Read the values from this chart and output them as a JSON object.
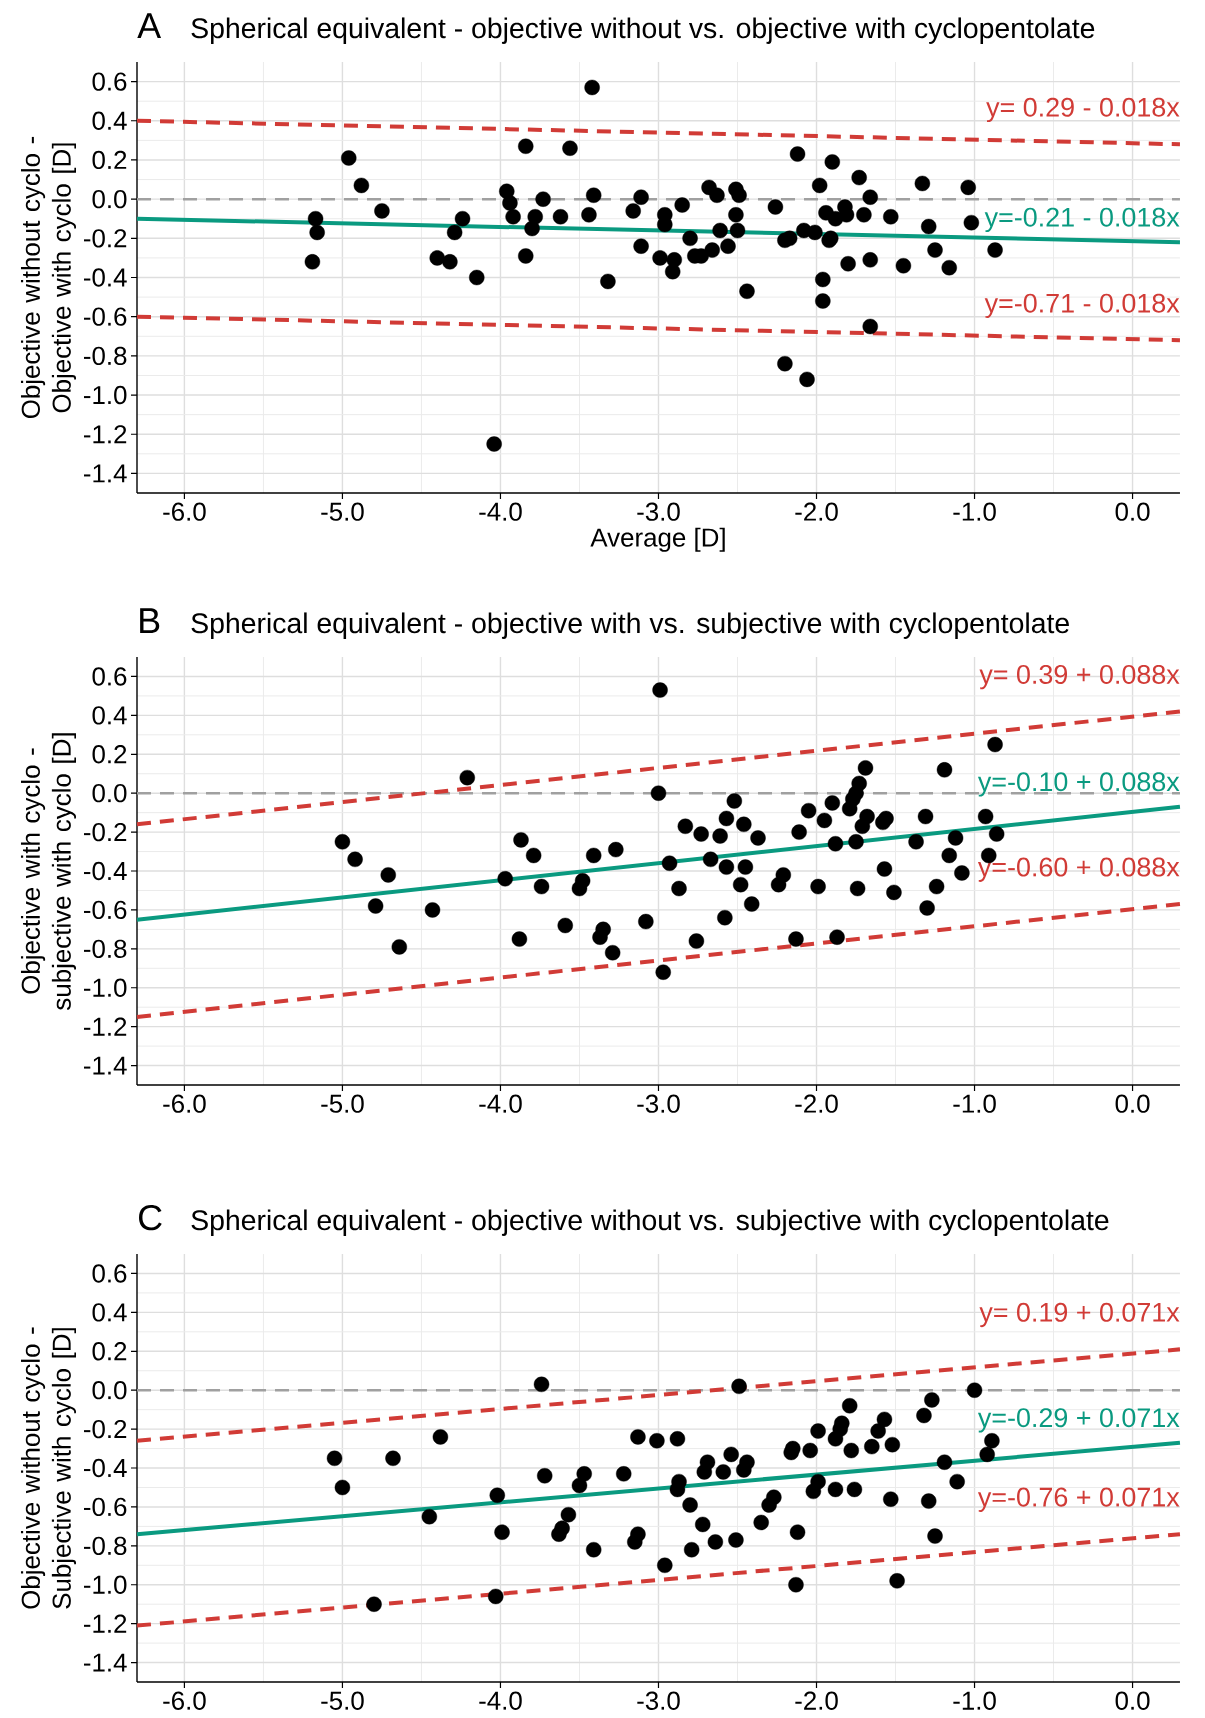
{
  "chart_data": [
    {
      "type": "scatter",
      "title": "Spherical equivalent - objective without vs. objective with cyclopentolate",
      "xlabel": "Average [D]",
      "ylabel": "Objective without cyclo - Objective with cyclo [D]",
      "annotations": [
        "A",
        "y= 0.29 - 0.018x",
        "y=-0.21 - 0.018x",
        "y=-0.71 - 0.018x"
      ],
      "xlim": [
        -6.3,
        0.3
      ],
      "ylim": [
        -1.5,
        0.7
      ],
      "xticks": [
        {
          "value": -6,
          "label": "-6.0"
        },
        {
          "value": -5,
          "label": "-5.0"
        },
        {
          "value": -4,
          "label": "-4.0"
        },
        {
          "value": -3,
          "label": "-3.0"
        },
        {
          "value": -2,
          "label": "-2.0"
        },
        {
          "value": -1,
          "label": "-1.0"
        },
        {
          "value": 0,
          "label": "0.0"
        }
      ],
      "yticks": [
        {
          "value": -1.4,
          "label": "-1.4"
        },
        {
          "value": -1.2,
          "label": "-1.2"
        },
        {
          "value": -1.0,
          "label": "-1.0"
        },
        {
          "value": -0.8,
          "label": "-0.8"
        },
        {
          "value": -0.6,
          "label": "-0.6"
        },
        {
          "value": -0.4,
          "label": "-0.4"
        },
        {
          "value": -0.2,
          "label": "-0.2"
        },
        {
          "value": 0,
          "label": "0.0"
        },
        {
          "value": 0.2,
          "label": "0.2"
        },
        {
          "value": 0.4,
          "label": "0.4"
        },
        {
          "value": 0.6,
          "label": "0.6"
        }
      ],
      "grid": true,
      "marker": "circle",
      "ref_lines": [
        {
          "axis": "y",
          "value": 0,
          "color": "#a0a0a0",
          "line_style": "dashed"
        }
      ],
      "series": [
        {
          "type": "line",
          "marker": "none",
          "color": "#d13b36",
          "line_style": "dashed",
          "x": [
            -6.3,
            0.3
          ],
          "values": [
            0.4,
            0.28
          ]
        },
        {
          "type": "line",
          "marker": "none",
          "color": "#0a9a80",
          "line_style": "solid",
          "x": [
            -6.3,
            0.3
          ],
          "values": [
            -0.1,
            -0.22
          ]
        },
        {
          "type": "line",
          "marker": "none",
          "color": "#d13b36",
          "line_style": "dashed",
          "x": [
            -6.3,
            0.3
          ],
          "values": [
            -0.6,
            -0.72
          ]
        },
        {
          "color": "#000000",
          "x": [
            -5.19,
            -5.17,
            -5.16,
            -4.96,
            -4.88,
            -4.75,
            -4.4,
            -4.32,
            -4.29,
            -4.24,
            -4.15,
            -4.04,
            -3.96,
            -3.94,
            -3.92,
            -3.84,
            -3.84,
            -3.8,
            -3.78,
            -3.73,
            -3.62,
            -3.56,
            -3.44,
            -3.42,
            -3.41,
            -3.32,
            -3.16,
            -3.11,
            -3.11,
            -2.99,
            -2.96,
            -2.96,
            -2.91,
            -2.9,
            -2.85,
            -2.8,
            -2.77,
            -2.73,
            -2.68,
            -2.66,
            -2.63,
            -2.61,
            -2.56,
            -2.51,
            -2.49,
            -2.51,
            -2.5,
            -2.44,
            -2.26,
            -2.2,
            -2.17,
            -2.2,
            -2.12,
            -2.08,
            -2.06,
            -2.01,
            -1.98,
            -1.96,
            -1.96,
            -1.94,
            -1.92,
            -1.91,
            -1.9,
            -1.88,
            -1.82,
            -1.81,
            -1.8,
            -1.73,
            -1.7,
            -1.66,
            -1.66,
            -1.66,
            -1.53,
            -1.45,
            -1.33,
            -1.29,
            -1.25,
            -1.16,
            -1.04,
            -1.02,
            -0.87
          ],
          "values": [
            -0.32,
            -0.1,
            -0.17,
            0.21,
            0.07,
            -0.06,
            -0.3,
            -0.32,
            -0.17,
            -0.1,
            -0.4,
            -1.25,
            0.04,
            -0.02,
            -0.09,
            0.27,
            -0.29,
            -0.15,
            -0.09,
            0.0,
            -0.09,
            0.26,
            -0.08,
            0.57,
            0.02,
            -0.42,
            -0.06,
            -0.24,
            0.01,
            -0.3,
            -0.08,
            -0.13,
            -0.37,
            -0.31,
            -0.03,
            -0.2,
            -0.29,
            -0.29,
            0.06,
            -0.26,
            0.02,
            -0.16,
            -0.24,
            0.05,
            0.02,
            -0.08,
            -0.16,
            -0.47,
            -0.04,
            -0.21,
            -0.2,
            -0.84,
            0.23,
            -0.16,
            -0.92,
            -0.17,
            0.07,
            -0.41,
            -0.52,
            -0.07,
            -0.21,
            -0.2,
            0.19,
            -0.1,
            -0.04,
            -0.08,
            -0.33,
            0.11,
            -0.08,
            0.01,
            -0.31,
            -0.65,
            -0.09,
            -0.34,
            0.08,
            -0.14,
            -0.26,
            -0.35,
            0.06,
            -0.12,
            -0.26
          ]
        }
      ]
    },
    {
      "type": "scatter",
      "title": "Spherical equivalent - objective with vs. subjective with cyclopentolate",
      "ylabel": "Objective with cyclo - subjective with cyclo [D]",
      "annotations": [
        "B",
        "y= 0.39 + 0.088x",
        "y=-0.10 + 0.088x",
        "y=-0.60 + 0.088x"
      ],
      "xlim": [
        -6.3,
        0.3
      ],
      "ylim": [
        -1.5,
        0.7
      ],
      "xticks": [
        {
          "value": -6,
          "label": "-6.0"
        },
        {
          "value": -5,
          "label": "-5.0"
        },
        {
          "value": -4,
          "label": "-4.0"
        },
        {
          "value": -3,
          "label": "-3.0"
        },
        {
          "value": -2,
          "label": "-2.0"
        },
        {
          "value": -1,
          "label": "-1.0"
        },
        {
          "value": 0,
          "label": "0.0"
        }
      ],
      "yticks": [
        {
          "value": -1.4,
          "label": "-1.4"
        },
        {
          "value": -1.2,
          "label": "-1.2"
        },
        {
          "value": -1.0,
          "label": "-1.0"
        },
        {
          "value": -0.8,
          "label": "-0.8"
        },
        {
          "value": -0.6,
          "label": "-0.6"
        },
        {
          "value": -0.4,
          "label": "-0.4"
        },
        {
          "value": -0.2,
          "label": "-0.2"
        },
        {
          "value": 0,
          "label": "0.0"
        },
        {
          "value": 0.2,
          "label": "0.2"
        },
        {
          "value": 0.4,
          "label": "0.4"
        },
        {
          "value": 0.6,
          "label": "0.6"
        }
      ],
      "grid": true,
      "marker": "circle",
      "ref_lines": [
        {
          "axis": "y",
          "value": 0,
          "color": "#a0a0a0",
          "line_style": "dashed"
        }
      ],
      "series": [
        {
          "type": "line",
          "marker": "none",
          "color": "#d13b36",
          "line_style": "dashed",
          "x": [
            -6.3,
            0.3
          ],
          "values": [
            -0.16,
            0.42
          ]
        },
        {
          "type": "line",
          "marker": "none",
          "color": "#0a9a80",
          "line_style": "solid",
          "x": [
            -6.3,
            0.3
          ],
          "values": [
            -0.65,
            -0.07
          ]
        },
        {
          "type": "line",
          "marker": "none",
          "color": "#d13b36",
          "line_style": "dashed",
          "x": [
            -6.3,
            0.3
          ],
          "values": [
            -1.15,
            -0.57
          ]
        },
        {
          "color": "#000000",
          "x": [
            -5.0,
            -4.92,
            -4.71,
            -4.79,
            -4.64,
            -4.43,
            -4.21,
            -3.97,
            -3.87,
            -3.88,
            -3.79,
            -3.74,
            -3.59,
            -3.5,
            -3.48,
            -3.41,
            -3.37,
            -3.35,
            -3.29,
            -3.27,
            -3.08,
            -2.99,
            -3.0,
            -2.97,
            -2.93,
            -2.87,
            -2.83,
            -2.76,
            -2.73,
            -2.67,
            -2.61,
            -2.57,
            -2.57,
            -2.58,
            -2.52,
            -2.48,
            -2.46,
            -2.45,
            -2.41,
            -2.37,
            -2.24,
            -2.21,
            -2.13,
            -2.11,
            -2.05,
            -1.99,
            -1.95,
            -1.9,
            -1.88,
            -1.87,
            -1.79,
            -1.77,
            -1.75,
            -1.73,
            -1.69,
            -1.75,
            -1.74,
            -1.71,
            -1.68,
            -1.58,
            -1.56,
            -1.57,
            -1.51,
            -1.37,
            -1.31,
            -1.3,
            -1.24,
            -1.19,
            -1.16,
            -1.12,
            -1.08,
            -0.93,
            -0.91,
            -0.87,
            -0.86
          ],
          "values": [
            -0.25,
            -0.34,
            -0.42,
            -0.58,
            -0.79,
            -0.6,
            0.08,
            -0.44,
            -0.24,
            -0.75,
            -0.32,
            -0.48,
            -0.68,
            -0.49,
            -0.45,
            -0.32,
            -0.74,
            -0.7,
            -0.82,
            -0.29,
            -0.66,
            0.53,
            0.0,
            -0.92,
            -0.36,
            -0.49,
            -0.17,
            -0.76,
            -0.21,
            -0.34,
            -0.22,
            -0.13,
            -0.38,
            -0.64,
            -0.04,
            -0.47,
            -0.16,
            -0.38,
            -0.57,
            -0.23,
            -0.47,
            -0.42,
            -0.75,
            -0.2,
            -0.09,
            -0.48,
            -0.14,
            -0.05,
            -0.26,
            -0.74,
            -0.08,
            -0.03,
            0.0,
            0.05,
            0.13,
            -0.25,
            -0.49,
            -0.17,
            -0.12,
            -0.15,
            -0.13,
            -0.39,
            -0.51,
            -0.25,
            -0.12,
            -0.59,
            -0.48,
            0.12,
            -0.32,
            -0.23,
            -0.41,
            -0.12,
            -0.32,
            0.25,
            -0.21
          ]
        }
      ]
    },
    {
      "type": "scatter",
      "title": "Spherical equivalent - objective without vs. subjective with cyclopentolate",
      "ylabel": "Objective without cyclo - Subjective with cyclo [D]",
      "annotations": [
        "C",
        "y= 0.19 + 0.071x",
        "y=-0.29 + 0.071x",
        "y=-0.76 + 0.071x"
      ],
      "xlim": [
        -6.3,
        0.3
      ],
      "ylim": [
        -1.5,
        0.7
      ],
      "xticks": [
        {
          "value": -6,
          "label": "-6.0"
        },
        {
          "value": -5,
          "label": "-5.0"
        },
        {
          "value": -4,
          "label": "-4.0"
        },
        {
          "value": -3,
          "label": "-3.0"
        },
        {
          "value": -2,
          "label": "-2.0"
        },
        {
          "value": -1,
          "label": "-1.0"
        },
        {
          "value": 0,
          "label": "0.0"
        }
      ],
      "yticks": [
        {
          "value": -1.4,
          "label": "-1.4"
        },
        {
          "value": -1.2,
          "label": "-1.2"
        },
        {
          "value": -1.0,
          "label": "-1.0"
        },
        {
          "value": -0.8,
          "label": "-0.8"
        },
        {
          "value": -0.6,
          "label": "-0.6"
        },
        {
          "value": -0.4,
          "label": "-0.4"
        },
        {
          "value": -0.2,
          "label": "-0.2"
        },
        {
          "value": 0,
          "label": "0.0"
        },
        {
          "value": 0.2,
          "label": "0.2"
        },
        {
          "value": 0.4,
          "label": "0.4"
        },
        {
          "value": 0.6,
          "label": "0.6"
        }
      ],
      "grid": true,
      "marker": "circle",
      "ref_lines": [
        {
          "axis": "y",
          "value": 0,
          "color": "#a0a0a0",
          "line_style": "dashed"
        }
      ],
      "series": [
        {
          "type": "line",
          "marker": "none",
          "color": "#d13b36",
          "line_style": "dashed",
          "x": [
            -6.3,
            0.3
          ],
          "values": [
            -0.26,
            0.21
          ]
        },
        {
          "type": "line",
          "marker": "none",
          "color": "#0a9a80",
          "line_style": "solid",
          "x": [
            -6.3,
            0.3
          ],
          "values": [
            -0.74,
            -0.27
          ]
        },
        {
          "type": "line",
          "marker": "none",
          "color": "#d13b36",
          "line_style": "dashed",
          "x": [
            -6.3,
            0.3
          ],
          "values": [
            -1.21,
            -0.74
          ]
        },
        {
          "color": "#000000",
          "x": [
            -5.05,
            -5.0,
            -4.68,
            -4.45,
            -4.38,
            -4.8,
            -4.02,
            -3.99,
            -4.03,
            -3.74,
            -3.72,
            -3.63,
            -3.61,
            -3.57,
            -3.5,
            -3.47,
            -3.41,
            -3.22,
            -3.13,
            -3.15,
            -3.13,
            -3.01,
            -2.88,
            -2.96,
            -2.87,
            -2.88,
            -2.8,
            -2.79,
            -2.72,
            -2.71,
            -2.69,
            -2.64,
            -2.59,
            -2.54,
            -2.51,
            -2.49,
            -2.46,
            -2.44,
            -2.35,
            -2.3,
            -2.27,
            -2.16,
            -2.15,
            -2.12,
            -2.13,
            -2.04,
            -2.02,
            -1.99,
            -1.99,
            -1.88,
            -1.88,
            -1.85,
            -1.84,
            -1.79,
            -1.78,
            -1.76,
            -1.65,
            -1.61,
            -1.57,
            -1.52,
            -1.53,
            -1.49,
            -1.32,
            -1.27,
            -1.29,
            -1.25,
            -1.19,
            -1.11,
            -1.0,
            -0.92,
            -0.89
          ],
          "values": [
            -0.35,
            -0.5,
            -0.35,
            -0.65,
            -0.24,
            -1.1,
            -0.54,
            -0.73,
            -1.06,
            0.03,
            -0.44,
            -0.74,
            -0.71,
            -0.64,
            -0.49,
            -0.43,
            -0.82,
            -0.43,
            -0.24,
            -0.78,
            -0.74,
            -0.26,
            -0.25,
            -0.9,
            -0.47,
            -0.51,
            -0.59,
            -0.82,
            -0.69,
            -0.42,
            -0.37,
            -0.78,
            -0.42,
            -0.33,
            -0.77,
            0.02,
            -0.41,
            -0.37,
            -0.68,
            -0.59,
            -0.55,
            -0.32,
            -0.3,
            -0.73,
            -1.0,
            -0.31,
            -0.52,
            -0.47,
            -0.21,
            -0.51,
            -0.25,
            -0.2,
            -0.17,
            -0.08,
            -0.31,
            -0.51,
            -0.29,
            -0.21,
            -0.15,
            -0.28,
            -0.56,
            -0.98,
            -0.13,
            -0.05,
            -0.57,
            -0.75,
            -0.37,
            -0.47,
            0.0,
            -0.33,
            -0.26
          ]
        }
      ]
    }
  ]
}
